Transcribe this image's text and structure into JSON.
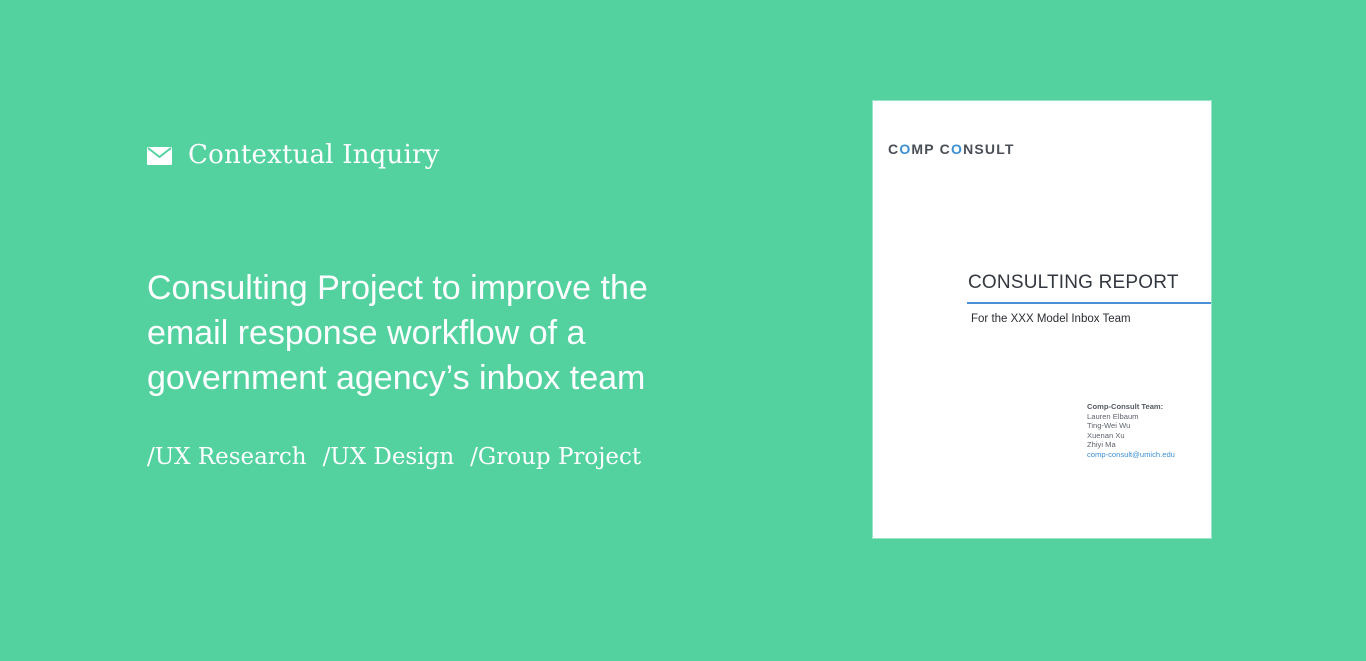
{
  "theme": {
    "background": "#53d2a0",
    "text": "#ffffff",
    "accent": "#4a90d9"
  },
  "hero": {
    "eyebrow": {
      "icon": "mail-icon",
      "label": "Contextual Inquiry"
    },
    "headline_lines": [
      "Consulting Project to improve the",
      "email response workflow of a",
      "government agency’s inbox team"
    ],
    "tags": [
      "/UX Research",
      "/UX Design",
      "/Group Project"
    ]
  },
  "report": {
    "brand": {
      "part1": "C",
      "o1": "O",
      "part2": "MP C",
      "o2": "O",
      "part3": "NSULT"
    },
    "title": "CONSULTING REPORT",
    "subtitle": "For the XXX Model Inbox Team",
    "team_heading": "Comp-Consult Team:",
    "members": [
      "Lauren Elbaum",
      "Ting-Wei Wu",
      "Xuenan Xu",
      "Zhiyi Ma"
    ],
    "email": "comp-consult@umich.edu"
  }
}
